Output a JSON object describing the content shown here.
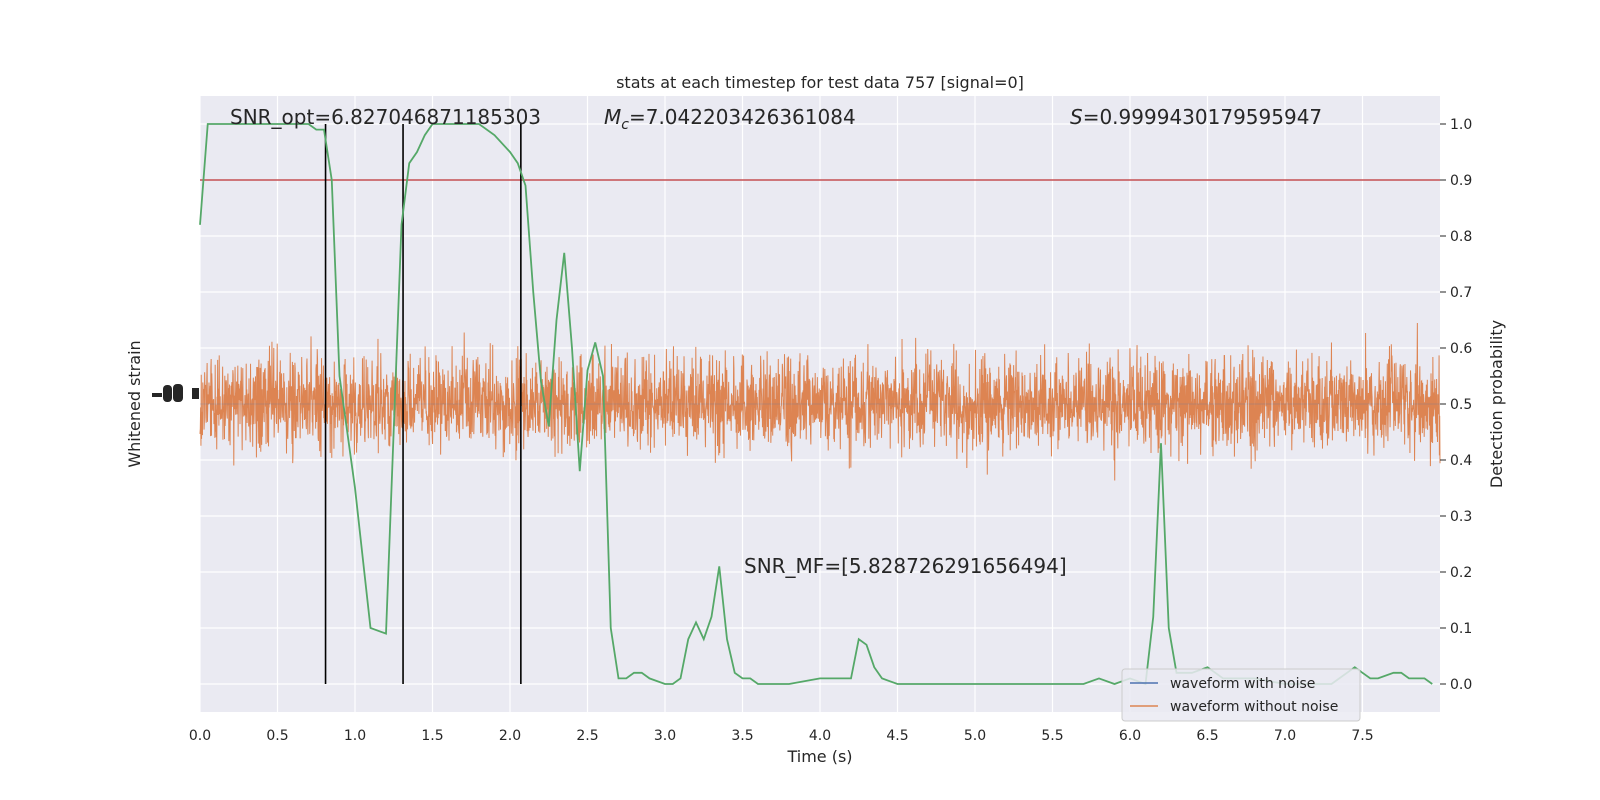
{
  "chart_data": {
    "type": "line",
    "title": "stats at each timestep for test data 757 [signal=0]",
    "xlabel": "Time (s)",
    "ylabel_left": "Whitened strain",
    "ylabel_right": "Detection probability",
    "xlim": [
      0,
      8
    ],
    "ylim_right": [
      -0.05,
      1.05
    ],
    "x_ticks": [
      "0.0",
      "0.5",
      "1.0",
      "1.5",
      "2.0",
      "2.5",
      "3.0",
      "3.5",
      "4.0",
      "4.5",
      "5.0",
      "5.5",
      "6.0",
      "6.5",
      "7.0",
      "7.5"
    ],
    "y_ticks_right": [
      "0.0",
      "0.1",
      "0.2",
      "0.3",
      "0.4",
      "0.5",
      "0.6",
      "0.7",
      "0.8",
      "0.9",
      "1.0"
    ],
    "annotations": {
      "snr_opt": "SNR_opt=6.827046871185303",
      "mc_symbol": "M",
      "mc_sub": "c",
      "mc_value": "=7.042203426361084",
      "s_symbol": "S",
      "s_value": "=0.9999430179595947",
      "snr_mf": "SNR_MF=[5.828726291656494]"
    },
    "threshold": 0.9,
    "vertical_lines_x": [
      0.81,
      1.31,
      2.07
    ],
    "legend": {
      "placement": "lower-right",
      "entries": [
        {
          "label": "waveform with noise",
          "color": "#4c72b0"
        },
        {
          "label": "waveform without noise",
          "color": "#dd8452"
        }
      ]
    },
    "series": [
      {
        "role": "detection probability",
        "color": "#55a868",
        "x": [
          0.0,
          0.05,
          0.1,
          0.15,
          0.2,
          0.3,
          0.4,
          0.5,
          0.6,
          0.7,
          0.75,
          0.8,
          0.85,
          0.9,
          1.0,
          1.1,
          1.2,
          1.3,
          1.35,
          1.4,
          1.45,
          1.5,
          1.6,
          1.7,
          1.8,
          1.9,
          2.0,
          2.05,
          2.1,
          2.15,
          2.2,
          2.25,
          2.3,
          2.35,
          2.4,
          2.45,
          2.5,
          2.55,
          2.6,
          2.65,
          2.7,
          2.75,
          2.8,
          2.85,
          2.9,
          3.0,
          3.05,
          3.1,
          3.15,
          3.2,
          3.25,
          3.3,
          3.35,
          3.4,
          3.45,
          3.5,
          3.55,
          3.6,
          3.7,
          3.8,
          4.0,
          4.1,
          4.2,
          4.25,
          4.3,
          4.35,
          4.4,
          4.5,
          4.6,
          4.7,
          4.8,
          5.0,
          5.2,
          5.4,
          5.6,
          5.65,
          5.7,
          5.8,
          5.9,
          6.0,
          6.1,
          6.15,
          6.2,
          6.25,
          6.3,
          6.4,
          6.5,
          6.6,
          6.8,
          7.0,
          7.2,
          7.3,
          7.35,
          7.4,
          7.45,
          7.5,
          7.55,
          7.6,
          7.7,
          7.75,
          7.8,
          7.9,
          7.95
        ],
        "y": [
          0.82,
          1.0,
          1.0,
          1.0,
          1.0,
          1.0,
          1.0,
          1.0,
          1.0,
          1.0,
          0.99,
          0.99,
          0.9,
          0.55,
          0.35,
          0.1,
          0.09,
          0.82,
          0.93,
          0.95,
          0.98,
          1.0,
          1.0,
          1.0,
          1.0,
          0.98,
          0.95,
          0.93,
          0.89,
          0.7,
          0.54,
          0.46,
          0.65,
          0.77,
          0.6,
          0.38,
          0.56,
          0.61,
          0.55,
          0.1,
          0.01,
          0.01,
          0.02,
          0.02,
          0.01,
          0.0,
          0.0,
          0.01,
          0.08,
          0.11,
          0.08,
          0.12,
          0.21,
          0.08,
          0.02,
          0.01,
          0.01,
          0.0,
          0.0,
          0.0,
          0.01,
          0.01,
          0.01,
          0.08,
          0.07,
          0.03,
          0.01,
          0.0,
          0.0,
          0.0,
          0.0,
          0.0,
          0.0,
          0.0,
          0.0,
          0.0,
          0.0,
          0.01,
          0.0,
          0.01,
          0.0,
          0.12,
          0.43,
          0.1,
          0.02,
          0.02,
          0.03,
          0.01,
          0.01,
          0.0,
          0.0,
          0.0,
          0.01,
          0.02,
          0.03,
          0.02,
          0.01,
          0.01,
          0.02,
          0.02,
          0.01,
          0.01,
          0.0
        ]
      }
    ]
  }
}
